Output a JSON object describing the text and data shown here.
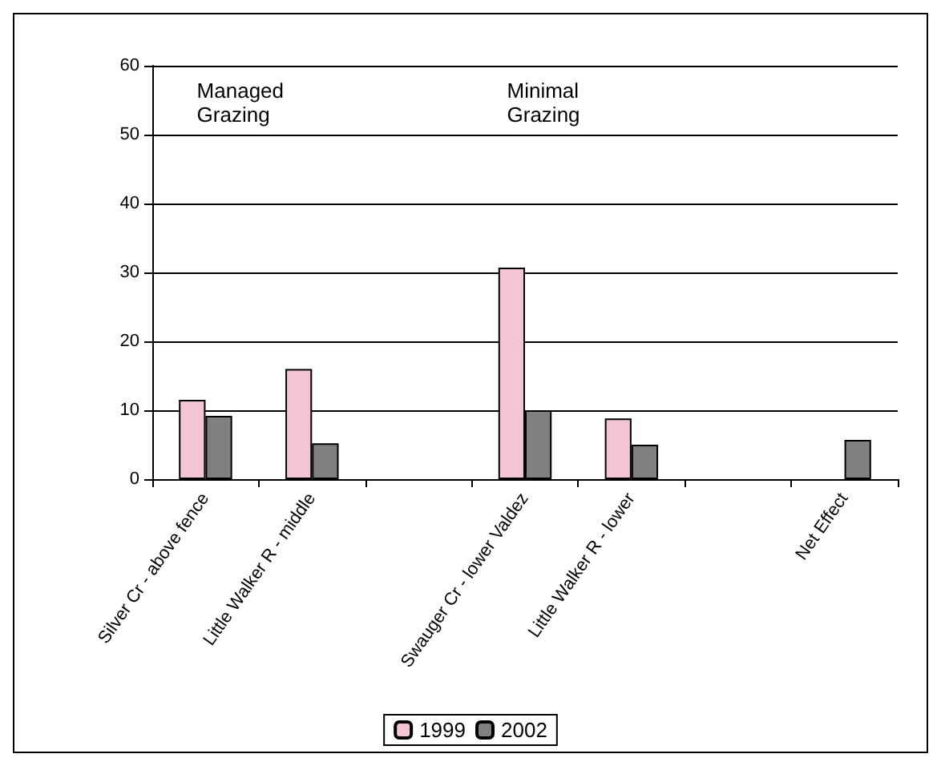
{
  "chart_data": {
    "type": "bar",
    "categories": [
      "Silver Cr - above fence",
      "Little Walker R - middle",
      null,
      "Swauger Cr - lower Valdez",
      "Little Walker R - lower",
      null,
      "Net Effect"
    ],
    "series": [
      {
        "name": "1999",
        "color": "#f2c4d6",
        "values": [
          11.5,
          16,
          null,
          30.7,
          8.8,
          null,
          null
        ]
      },
      {
        "name": "2002",
        "color": "#808080",
        "values": [
          9.2,
          5.2,
          null,
          10,
          5,
          null,
          5.7
        ]
      }
    ],
    "ylim": [
      0,
      60
    ],
    "yticks": [
      0,
      10,
      20,
      30,
      40,
      50,
      60
    ],
    "grid": "y",
    "legend": "bottom",
    "annotations": [
      "Managed\nGrazing",
      "Minimal\nGrazing"
    ]
  }
}
